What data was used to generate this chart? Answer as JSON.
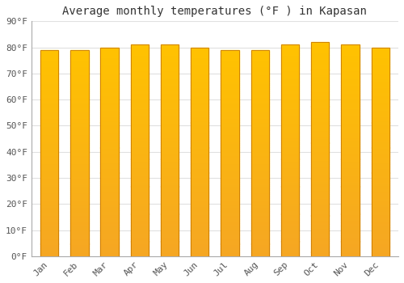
{
  "title": "Average monthly temperatures (°F ) in Kapasan",
  "months": [
    "Jan",
    "Feb",
    "Mar",
    "Apr",
    "May",
    "Jun",
    "Jul",
    "Aug",
    "Sep",
    "Oct",
    "Nov",
    "Dec"
  ],
  "values": [
    79,
    79,
    80,
    81,
    81,
    80,
    79,
    79,
    81,
    82,
    81,
    80
  ],
  "ylim": [
    0,
    90
  ],
  "yticks": [
    0,
    10,
    20,
    30,
    40,
    50,
    60,
    70,
    80,
    90
  ],
  "ytick_labels": [
    "0°F",
    "10°F",
    "20°F",
    "30°F",
    "40°F",
    "50°F",
    "60°F",
    "70°F",
    "80°F",
    "90°F"
  ],
  "bar_color_bottom": "#F5A623",
  "bar_color_top": "#FFC200",
  "bar_edge_color": "#C87800",
  "background_color": "#FFFFFF",
  "grid_color": "#E0E0E0",
  "title_fontsize": 10,
  "tick_fontsize": 8,
  "font_family": "monospace",
  "bar_width": 0.6,
  "gradient_steps": 100
}
